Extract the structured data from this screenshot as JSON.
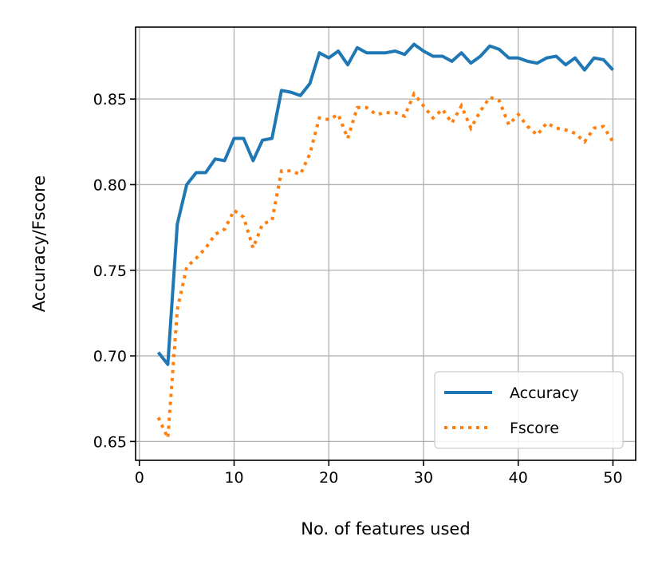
{
  "chart_data": {
    "type": "line",
    "xlabel": "No. of features used",
    "ylabel": "Accuracy/Fscore",
    "xlim": [
      -0.4,
      52.4
    ],
    "ylim": [
      0.639,
      0.892
    ],
    "xticks": [
      0,
      10,
      20,
      30,
      40,
      50
    ],
    "yticks": [
      0.65,
      0.7,
      0.75,
      0.8,
      0.85
    ],
    "xtick_labels": [
      "0",
      "10",
      "20",
      "30",
      "40",
      "50"
    ],
    "ytick_labels": [
      "0.65",
      "0.70",
      "0.75",
      "0.80",
      "0.85"
    ],
    "grid": true,
    "legend_position": "lower-right",
    "x": [
      2,
      3,
      4,
      5,
      6,
      7,
      8,
      9,
      10,
      11,
      12,
      13,
      14,
      15,
      16,
      17,
      18,
      19,
      20,
      21,
      22,
      23,
      24,
      25,
      26,
      27,
      28,
      29,
      30,
      31,
      32,
      33,
      34,
      35,
      36,
      37,
      38,
      39,
      40,
      41,
      42,
      43,
      44,
      45,
      46,
      47,
      48,
      49,
      50
    ],
    "series": [
      {
        "name": "Accuracy",
        "color": "#1f77b4",
        "style": "solid",
        "values": [
          0.702,
          0.695,
          0.777,
          0.8,
          0.807,
          0.807,
          0.815,
          0.814,
          0.827,
          0.827,
          0.814,
          0.826,
          0.827,
          0.855,
          0.854,
          0.852,
          0.859,
          0.877,
          0.874,
          0.878,
          0.87,
          0.88,
          0.877,
          0.877,
          0.877,
          0.878,
          0.876,
          0.882,
          0.878,
          0.875,
          0.875,
          0.872,
          0.877,
          0.871,
          0.875,
          0.881,
          0.879,
          0.874,
          0.874,
          0.872,
          0.871,
          0.874,
          0.875,
          0.87,
          0.874,
          0.867,
          0.874,
          0.873,
          0.867
        ]
      },
      {
        "name": "Fscore",
        "color": "#ff7f0e",
        "style": "dotted",
        "values": [
          0.664,
          0.652,
          0.727,
          0.752,
          0.757,
          0.763,
          0.771,
          0.774,
          0.785,
          0.781,
          0.763,
          0.777,
          0.779,
          0.808,
          0.808,
          0.806,
          0.818,
          0.839,
          0.838,
          0.841,
          0.827,
          0.845,
          0.845,
          0.841,
          0.842,
          0.842,
          0.84,
          0.853,
          0.846,
          0.839,
          0.844,
          0.836,
          0.846,
          0.833,
          0.843,
          0.851,
          0.849,
          0.835,
          0.841,
          0.834,
          0.829,
          0.836,
          0.833,
          0.832,
          0.83,
          0.825,
          0.833,
          0.834,
          0.825
        ]
      }
    ]
  }
}
